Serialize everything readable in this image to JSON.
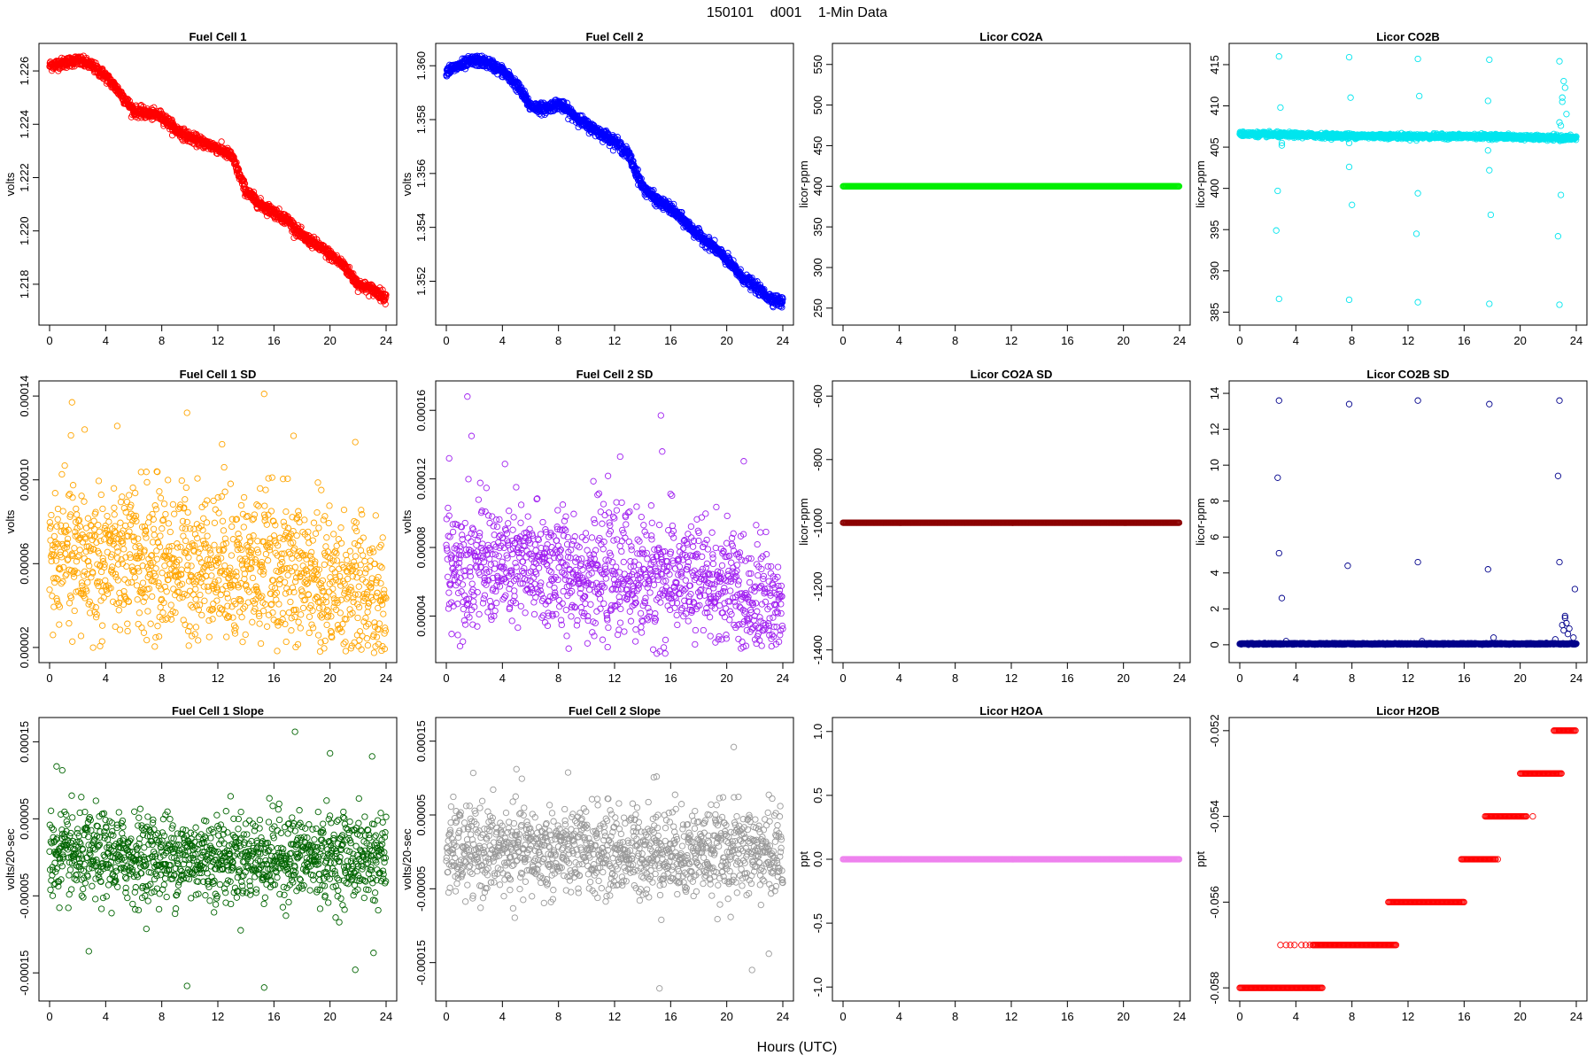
{
  "figure": {
    "title_parts": [
      "150101",
      "d001",
      "1-Min Data"
    ],
    "xlabel": "Hours (UTC)"
  },
  "chart_data": [
    {
      "type": "scatter",
      "title": "Fuel Cell 1",
      "ylabel": "volts",
      "color": "#ff0000",
      "x_ticks": [
        0,
        4,
        8,
        12,
        16,
        20,
        24
      ],
      "xlim": [
        0,
        24
      ],
      "y_ticks": [
        1.218,
        1.22,
        1.222,
        1.224,
        1.226
      ],
      "y_tick_labels": [
        "1.218",
        "1.220",
        "1.222",
        "1.224",
        "1.226"
      ],
      "ylim": [
        1.2168,
        1.2267
      ],
      "series": [
        {
          "mode": "trend",
          "x": [
            0,
            1,
            2,
            3,
            4,
            5,
            6,
            7,
            8,
            9,
            10,
            11,
            12,
            13,
            14,
            15,
            16,
            17,
            18,
            19,
            20,
            21,
            22,
            23,
            24
          ],
          "y": [
            1.2262,
            1.2263,
            1.2264,
            1.2262,
            1.2258,
            1.2252,
            1.2245,
            1.2244,
            1.2243,
            1.2238,
            1.2235,
            1.2233,
            1.2231,
            1.2228,
            1.2215,
            1.221,
            1.2207,
            1.2204,
            1.2198,
            1.2195,
            1.2191,
            1.2187,
            1.218,
            1.2178,
            1.2175
          ],
          "spread": 0.00018,
          "n": 1440
        }
      ]
    },
    {
      "type": "scatter",
      "title": "Fuel Cell 2",
      "ylabel": "volts",
      "color": "#0000ff",
      "x_ticks": [
        0,
        4,
        8,
        12,
        16,
        20,
        24
      ],
      "xlim": [
        0,
        24
      ],
      "y_ticks": [
        1.352,
        1.354,
        1.356,
        1.358,
        1.36
      ],
      "y_tick_labels": [
        "1.352",
        "1.354",
        "1.356",
        "1.358",
        "1.360"
      ],
      "ylim": [
        1.3507,
        1.3605
      ],
      "series": [
        {
          "mode": "trend",
          "x": [
            0,
            1,
            2,
            3,
            4,
            5,
            6,
            7,
            8,
            9,
            10,
            11,
            12,
            13,
            14,
            15,
            16,
            17,
            18,
            19,
            20,
            21,
            22,
            23,
            24
          ],
          "y": [
            1.3598,
            1.36,
            1.3602,
            1.3601,
            1.3598,
            1.3593,
            1.3585,
            1.3584,
            1.3586,
            1.3582,
            1.3578,
            1.3575,
            1.3572,
            1.3567,
            1.3555,
            1.355,
            1.3547,
            1.3542,
            1.3537,
            1.3533,
            1.3528,
            1.3522,
            1.3518,
            1.3514,
            1.3512
          ],
          "spread": 0.00018,
          "n": 1440
        }
      ]
    },
    {
      "type": "scatter",
      "title": "Licor CO2A",
      "ylabel": "licor-ppm",
      "color": "#00ee00",
      "x_ticks": [
        0,
        4,
        8,
        12,
        16,
        20,
        24
      ],
      "xlim": [
        0,
        24
      ],
      "y_ticks": [
        250,
        300,
        350,
        400,
        450,
        500,
        550
      ],
      "y_tick_labels": [
        "250",
        "300",
        "350",
        "400",
        "450",
        "500",
        "550"
      ],
      "ylim": [
        240,
        565
      ],
      "series": [
        {
          "mode": "flat",
          "x": [
            0,
            24
          ],
          "y": [
            400,
            400
          ],
          "n": 1440
        }
      ]
    },
    {
      "type": "scatter",
      "title": "Licor CO2B",
      "ylabel": "licor-ppm",
      "color": "#00e5ee",
      "x_ticks": [
        0,
        4,
        8,
        12,
        16,
        20,
        24
      ],
      "xlim": [
        0,
        24
      ],
      "y_ticks": [
        385,
        390,
        395,
        400,
        405,
        410,
        415
      ],
      "y_tick_labels": [
        "385",
        "390",
        "395",
        "400",
        "405",
        "410",
        "415"
      ],
      "ylim": [
        384.5,
        416.5
      ],
      "series": [
        {
          "mode": "trend",
          "x": [
            0,
            6,
            12,
            18,
            22,
            24
          ],
          "y": [
            406.6,
            406.4,
            406.3,
            406.3,
            406.1,
            406.1
          ],
          "spread": 0.25,
          "n": 1440
        },
        {
          "mode": "points",
          "x": [
            2.8,
            2.8,
            2.9,
            3.0,
            2.7,
            2.6,
            2.8,
            3.0,
            7.8,
            7.8,
            7.9,
            7.8,
            8.0,
            7.7,
            7.8,
            12.7,
            12.7,
            12.8,
            12.6,
            12.7,
            12.7,
            12.6,
            17.8,
            17.8,
            17.7,
            17.8,
            17.9,
            17.7,
            22.8,
            22.8,
            22.9,
            22.7,
            22.6,
            22.8,
            23.0,
            23.1,
            23.2,
            23.3,
            23.0,
            22.9
          ],
          "y": [
            416.0,
            386.6,
            409.8,
            405.2,
            399.7,
            394.9,
            406.2,
            405.5,
            415.9,
            386.5,
            411.0,
            402.6,
            398.0,
            406.0,
            405.5,
            415.7,
            386.2,
            411.2,
            394.5,
            399.4,
            406.1,
            405.8,
            415.6,
            386.0,
            410.6,
            402.2,
            396.8,
            404.6,
            415.4,
            385.9,
            399.2,
            394.2,
            406.5,
            408.0,
            410.5,
            413.0,
            412.2,
            409.0,
            411.0,
            407.6
          ]
        }
      ]
    },
    {
      "type": "scatter",
      "title": "Fuel Cell 1 SD",
      "ylabel": "volts",
      "color": "#ffa500",
      "x_ticks": [
        0,
        4,
        8,
        12,
        16,
        20,
        24
      ],
      "xlim": [
        0,
        24
      ],
      "y_ticks": [
        2e-05,
        6e-05,
        0.0001,
        0.00014
      ],
      "y_tick_labels": [
        "0.00002",
        "0.00006",
        "0.00010",
        "0.00014"
      ],
      "ylim": [
        1.7e-05,
        0.000143
      ],
      "series": [
        {
          "mode": "noise",
          "x": [
            0,
            12,
            18,
            21,
            24
          ],
          "y": [
            6.2e-05,
            6e-05,
            5.5e-05,
            4.8e-05,
            3.8e-05
          ],
          "spread": 1.8e-05,
          "n": 1200
        },
        {
          "mode": "points",
          "x": [
            15.3,
            9.8,
            1.6,
            17.4,
            21.8,
            12.3,
            2.5
          ],
          "y": [
            0.000141,
            0.000132,
            0.000137,
            0.000121,
            0.000118,
            0.000117,
            0.000124
          ]
        }
      ]
    },
    {
      "type": "scatter",
      "title": "Fuel Cell 2 SD",
      "ylabel": "volts",
      "color": "#a020f0",
      "x_ticks": [
        0,
        4,
        8,
        12,
        16,
        20,
        24
      ],
      "xlim": [
        0,
        24
      ],
      "y_ticks": [
        4e-05,
        8e-05,
        0.00012,
        0.00016
      ],
      "y_tick_labels": [
        "0.00004",
        "0.00008",
        "0.00012",
        "0.00016"
      ],
      "ylim": [
        1.8e-05,
        0.000172
      ],
      "series": [
        {
          "mode": "noise",
          "x": [
            0,
            12,
            18,
            21,
            24
          ],
          "y": [
            7.2e-05,
            6.4e-05,
            6e-05,
            5.4e-05,
            4.3e-05
          ],
          "spread": 1.8e-05,
          "n": 1200
        },
        {
          "mode": "points",
          "x": [
            1.5,
            15.3,
            1.8,
            0.2,
            12.4,
            15.4
          ],
          "y": [
            0.000168,
            0.000157,
            0.000145,
            0.000132,
            0.000133,
            0.000136
          ]
        }
      ]
    },
    {
      "type": "scatter",
      "title": "Licor CO2A SD",
      "ylabel": "licor-ppm",
      "color": "#8b0000",
      "x_ticks": [
        0,
        4,
        8,
        12,
        16,
        20,
        24
      ],
      "xlim": [
        0,
        24
      ],
      "y_ticks": [
        -1400,
        -1200,
        -1000,
        -800,
        -600
      ],
      "y_tick_labels": [
        "-1400",
        "-1200",
        "-1000",
        "-800",
        "-600"
      ],
      "ylim": [
        -1412,
        -580
      ],
      "series": [
        {
          "mode": "flat",
          "x": [
            0,
            24
          ],
          "y": [
            -999,
            -999
          ],
          "n": 1440
        }
      ]
    },
    {
      "type": "scatter",
      "title": "Licor CO2B SD",
      "ylabel": "licor-ppm",
      "color": "#00008b",
      "x_ticks": [
        0,
        4,
        8,
        12,
        16,
        20,
        24
      ],
      "xlim": [
        0,
        24
      ],
      "y_ticks": [
        0,
        2,
        4,
        6,
        8,
        10,
        12,
        14
      ],
      "y_tick_labels": [
        "0",
        "2",
        "4",
        "6",
        "8",
        "10",
        "12",
        "14"
      ],
      "ylim": [
        -0.5,
        14.2
      ],
      "series": [
        {
          "mode": "trend",
          "x": [
            0,
            24
          ],
          "y": [
            0.05,
            0.05
          ],
          "spread": 0.03,
          "n": 1440
        },
        {
          "mode": "points",
          "x": [
            2.8,
            2.7,
            2.8,
            3.0,
            3.3,
            7.8,
            7.7,
            12.7,
            12.7,
            13.0,
            17.8,
            17.7,
            18.1,
            22.8,
            22.7,
            22.8,
            23.2,
            23.3,
            23.5,
            23.8,
            23.9,
            23.0,
            23.1,
            23.2,
            23.4,
            22.5
          ],
          "y": [
            13.6,
            9.3,
            5.1,
            2.6,
            0.2,
            13.4,
            4.4,
            13.6,
            4.6,
            0.2,
            13.4,
            4.2,
            0.4,
            13.6,
            9.4,
            4.6,
            1.6,
            1.2,
            0.9,
            0.4,
            3.1,
            1.1,
            0.8,
            1.5,
            0.6,
            0.3
          ]
        }
      ]
    },
    {
      "type": "scatter",
      "title": "Fuel Cell 1 Slope",
      "ylabel": "volts/20-sec",
      "color": "#006400",
      "x_ticks": [
        0,
        4,
        8,
        12,
        16,
        20,
        24
      ],
      "xlim": [
        0,
        24
      ],
      "y_ticks": [
        -0.00015,
        -5e-05,
        5e-05,
        0.00015
      ],
      "y_tick_labels": [
        "-0.00015",
        "-0.00005",
        "0.00005",
        "0.00015"
      ],
      "ylim": [
        -0.000175,
        0.00017
      ],
      "series": [
        {
          "mode": "noise",
          "x": [
            0,
            24
          ],
          "y": [
            0,
            0
          ],
          "spread": 2.8e-05,
          "n": 1200
        },
        {
          "mode": "points",
          "x": [
            17.5,
            20.0,
            0.5,
            23.0,
            9.8,
            15.3,
            21.8,
            0.9,
            2.8,
            23.1
          ],
          "y": [
            0.000163,
            0.000135,
            0.000118,
            0.000131,
            -0.000167,
            -0.000169,
            -0.000146,
            0.000113,
            -0.000122,
            -0.000124
          ]
        }
      ]
    },
    {
      "type": "scatter",
      "title": "Fuel Cell 2 Slope",
      "ylabel": "volts/20-sec",
      "color": "#999999",
      "x_ticks": [
        0,
        4,
        8,
        12,
        16,
        20,
        24
      ],
      "xlim": [
        0,
        24
      ],
      "y_ticks": [
        -0.00015,
        -5e-05,
        5e-05,
        0.00015
      ],
      "y_tick_labels": [
        "-0.00015",
        "-0.00005",
        "0.00005",
        "0.00015"
      ],
      "ylim": [
        -0.00019,
        0.00017
      ],
      "series": [
        {
          "mode": "noise",
          "x": [
            0,
            24
          ],
          "y": [
            0,
            0
          ],
          "spread": 3e-05,
          "n": 1200
        },
        {
          "mode": "points",
          "x": [
            20.5,
            15.2,
            23.0,
            21.8,
            5.0,
            15.0,
            14.8
          ],
          "y": [
            0.000142,
            -0.000185,
            -0.000138,
            -0.00016,
            0.000112,
            0.000102,
            0.000101
          ]
        }
      ]
    },
    {
      "type": "scatter",
      "title": "Licor H2OA",
      "ylabel": "ppt",
      "color": "#ee82ee",
      "x_ticks": [
        0,
        4,
        8,
        12,
        16,
        20,
        24
      ],
      "xlim": [
        0,
        24
      ],
      "y_ticks": [
        -1.0,
        -0.5,
        0.0,
        0.5,
        1.0
      ],
      "y_tick_labels": [
        "-1.0",
        "-0.5",
        "0.0",
        "0.5",
        "1.0"
      ],
      "ylim": [
        -1.04,
        1.04
      ],
      "series": [
        {
          "mode": "flat",
          "x": [
            0,
            24
          ],
          "y": [
            0,
            0
          ],
          "n": 1440
        }
      ]
    },
    {
      "type": "scatter",
      "title": "Licor H2OB",
      "ylabel": "ppt",
      "color": "#ff0000",
      "x_ticks": [
        0,
        4,
        8,
        12,
        16,
        20,
        24
      ],
      "xlim": [
        0,
        24
      ],
      "y_ticks": [
        -0.058,
        -0.056,
        -0.054,
        -0.052
      ],
      "y_tick_labels": [
        "-0.058",
        "-0.056",
        "-0.054",
        "-0.052"
      ],
      "ylim": [
        -0.0581,
        -0.0519
      ],
      "series": [
        {
          "mode": "steps",
          "x": [
            0,
            5.9,
            2.9,
            3.3,
            3.6,
            4.0,
            4.4,
            4.7,
            5.1,
            5.2,
            11.2,
            10.6,
            18.3,
            15.8,
            18.3,
            17.5,
            20.5,
            18.3,
            20.9,
            20.0,
            23.0,
            22.4,
            24.0
          ],
          "segments": [
            [
              0,
              5.9,
              -0.058
            ],
            [
              5.2,
              11.2,
              -0.057
            ],
            [
              10.6,
              16.0,
              -0.056
            ],
            [
              15.8,
              18.3,
              -0.055
            ],
            [
              17.5,
              20.5,
              -0.054
            ],
            [
              20.0,
              23.0,
              -0.053
            ],
            [
              22.4,
              24.0,
              -0.052
            ]
          ],
          "extra": [
            [
              2.9,
              -0.057
            ],
            [
              3.3,
              -0.057
            ],
            [
              3.6,
              -0.057
            ],
            [
              3.9,
              -0.057
            ],
            [
              4.4,
              -0.057
            ],
            [
              4.7,
              -0.057
            ],
            [
              5.0,
              -0.057
            ],
            [
              18.4,
              -0.055
            ],
            [
              20.9,
              -0.054
            ]
          ]
        }
      ]
    }
  ]
}
